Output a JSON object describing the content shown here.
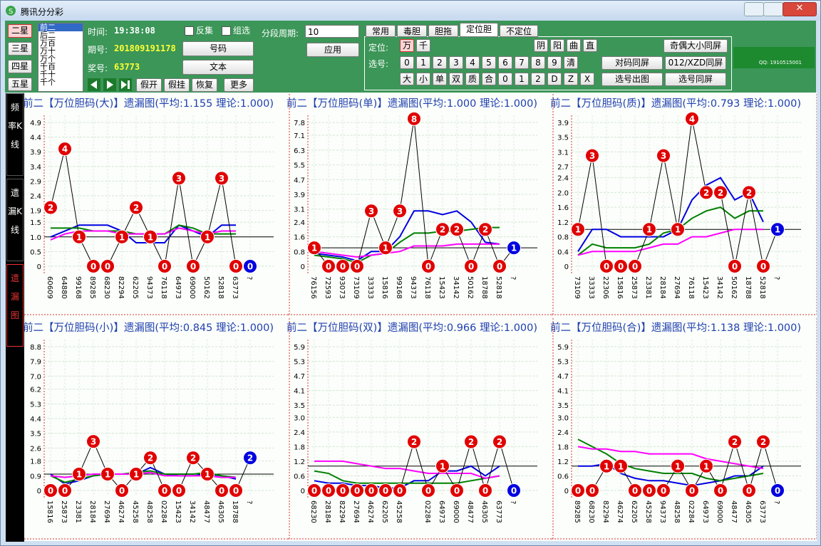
{
  "window": {
    "title": "腾讯分分彩"
  },
  "toolbar": {
    "stars": [
      "二星",
      "三星",
      "四星",
      "五星"
    ],
    "list": [
      "前二",
      "后二",
      "万百",
      "万十",
      "万个",
      "千百",
      "千十",
      "千个"
    ],
    "time_label": "时间:",
    "time": "19:38:08",
    "issue_label": "期号:",
    "issue": "201809191178",
    "prize_label": "奖号:",
    "prize": "63773",
    "checks": [
      "反集",
      "组选"
    ],
    "buttons": [
      "号码",
      "文本"
    ],
    "actions": [
      "假开",
      "假挂",
      "恢复",
      "更多"
    ],
    "period_label": "分段周期:",
    "period": "10",
    "apply": "应用",
    "tabs": [
      "常用",
      "毒胆",
      "胆拖",
      "定位胆",
      "不定位"
    ],
    "pos_label": "定位:",
    "positions": [
      "万",
      "千"
    ],
    "modes": [
      "阴",
      "阳",
      "曲",
      "直"
    ],
    "pick_label": "选号:",
    "digits": [
      "0",
      "1",
      "2",
      "3",
      "4",
      "5",
      "6",
      "7",
      "8",
      "9",
      "清"
    ],
    "attrs": [
      "大",
      "小",
      "单",
      "双",
      "质",
      "合",
      "0",
      "1",
      "2",
      "D",
      "Z",
      "X"
    ],
    "right_buttons": [
      "奇偶大小同屏",
      "对码同屏",
      "012/XZD同屏",
      "选号出图",
      "选号同屏"
    ],
    "logo": "QQ: 1910515001"
  },
  "sidebar": [
    "频率K线",
    "遗漏K线",
    "遗漏图"
  ],
  "chart_data": [
    {
      "type": "line",
      "title": "前二【万位胆码(大)】遗漏图(平均:1.155 理论:1.000)",
      "categories": [
        "60609",
        "64880",
        "99168",
        "89285",
        "68230",
        "82294",
        "62205",
        "94373",
        "76118",
        "64973",
        "69000",
        "50162",
        "52818",
        "63773",
        "?"
      ],
      "values": [
        2,
        4,
        1,
        0,
        0,
        1,
        2,
        1,
        0,
        3,
        0,
        1,
        3,
        0,
        0
      ],
      "series": [
        {
          "color": "#0000e0",
          "values": [
            1.0,
            1.2,
            1.4,
            1.4,
            1.4,
            1.2,
            0.8,
            0.8,
            0.8,
            1.4,
            1.2,
            1.0,
            1.4,
            1.4,
            null
          ]
        },
        {
          "color": "#008000",
          "values": [
            1.3,
            1.3,
            1.3,
            1.2,
            1.2,
            1.2,
            1.1,
            1.1,
            1.1,
            1.4,
            1.3,
            1.1,
            1.1,
            1.1,
            null
          ]
        },
        {
          "color": "#ff00ff",
          "values": [
            0.9,
            1.1,
            1.2,
            1.2,
            1.2,
            1.1,
            1.1,
            1.1,
            1.1,
            1.3,
            1.2,
            1.1,
            1.2,
            1.2,
            null
          ]
        }
      ],
      "reference_line": 1,
      "marker_color": "#e00000",
      "current_color": "#0000e0",
      "ylim": [
        0,
        4.9
      ],
      "yticks": [
        0,
        0.5,
        {
          "value": 1,
          "label": "1.0"
        },
        1.5,
        1.9,
        2.4,
        2.9,
        3.4,
        3.9,
        4.4,
        4.9
      ],
      "grid": true
    },
    {
      "type": "line",
      "title": "前二【万位胆码(单)】遗漏图(平均:1.000 理论:1.000)",
      "categories": [
        "76156",
        "72593",
        "93073",
        "73109",
        "33333",
        "15816",
        "99168",
        "94373",
        "76118",
        "15423",
        "34142",
        "50162",
        "18788",
        "52818",
        "?"
      ],
      "values": [
        1,
        0,
        0,
        0,
        3,
        1,
        3,
        8,
        0,
        2,
        2,
        0,
        2,
        0,
        1
      ],
      "series": [
        {
          "color": "#0000e0",
          "values": [
            0.7,
            0.6,
            0.5,
            0.3,
            0.8,
            0.8,
            1.6,
            3.0,
            3.0,
            2.8,
            3.0,
            2.4,
            1.3,
            1.2,
            null
          ]
        },
        {
          "color": "#008000",
          "values": [
            0.6,
            0.5,
            0.4,
            0.2,
            0.6,
            0.7,
            1.3,
            1.8,
            1.8,
            1.9,
            1.9,
            2.0,
            2.1,
            2.1,
            null
          ]
        },
        {
          "color": "#ff00ff",
          "values": [
            0.8,
            0.7,
            0.6,
            0.5,
            0.6,
            0.7,
            0.8,
            1.1,
            1.1,
            1.1,
            1.2,
            1.2,
            1.2,
            1.2,
            null
          ]
        }
      ],
      "reference_line": 1,
      "marker_color": "#e00000",
      "current_color": "#0000e0",
      "ylim": [
        0,
        7.8
      ],
      "yticks": [
        0,
        0.8,
        1.6,
        2.4,
        3.1,
        3.9,
        4.7,
        5.5,
        6.3,
        7.1,
        7.8
      ],
      "grid": true
    },
    {
      "type": "line",
      "title": "前二【万位胆码(质)】遗漏图(平均:0.793 理论:1.000)",
      "categories": [
        "73109",
        "33333",
        "22306",
        "15816",
        "25873",
        "23381",
        "28184",
        "27694",
        "76118",
        "15423",
        "34142",
        "50162",
        "18788",
        "52818",
        "?"
      ],
      "values": [
        1,
        3,
        0,
        0,
        0,
        1,
        3,
        1,
        4,
        2,
        2,
        0,
        2,
        0,
        1
      ],
      "series": [
        {
          "color": "#0000e0",
          "values": [
            0.4,
            1.0,
            1.0,
            0.8,
            0.8,
            0.8,
            0.8,
            1.0,
            1.8,
            2.2,
            2.4,
            1.8,
            2.0,
            1.2,
            null
          ]
        },
        {
          "color": "#008000",
          "values": [
            0.3,
            0.6,
            0.5,
            0.5,
            0.5,
            0.6,
            0.9,
            1.0,
            1.3,
            1.5,
            1.6,
            1.3,
            1.5,
            1.5,
            null
          ]
        },
        {
          "color": "#ff00ff",
          "values": [
            0.3,
            0.4,
            0.4,
            0.4,
            0.4,
            0.5,
            0.6,
            0.6,
            0.8,
            0.8,
            0.9,
            1.0,
            1.0,
            1.0,
            null
          ]
        }
      ],
      "reference_line": 1,
      "marker_color": "#e00000",
      "current_color": "#0000e0",
      "ylim": [
        0,
        3.9
      ],
      "yticks": [
        0,
        0.4,
        0.8,
        1.2,
        1.6,
        {
          "value": 2,
          "label": "2.0"
        },
        2.4,
        2.7,
        3.1,
        3.5,
        3.9
      ],
      "grid": true
    },
    {
      "type": "line",
      "title": "前二【万位胆码(小)】遗漏图(平均:0.845 理论:1.000)",
      "categories": [
        "15816",
        "25873",
        "23381",
        "28184",
        "27694",
        "46274",
        "45258",
        "48258",
        "02284",
        "15423",
        "34142",
        "48477",
        "46305",
        "18788",
        "?"
      ],
      "values": [
        0,
        0,
        1,
        3,
        1,
        0,
        1,
        2,
        0,
        0,
        2,
        1,
        0,
        0,
        2
      ],
      "series": [
        {
          "color": "#0000e0",
          "values": [
            1.0,
            0.4,
            0.6,
            0.9,
            1.0,
            1.0,
            1.0,
            1.4,
            1.0,
            0.9,
            0.9,
            1.0,
            0.9,
            0.7,
            null
          ]
        },
        {
          "color": "#008000",
          "values": [
            0.9,
            0.5,
            0.7,
            0.9,
            1.0,
            1.0,
            1.1,
            1.2,
            1.0,
            1.0,
            1.0,
            1.1,
            0.9,
            0.8,
            null
          ]
        },
        {
          "color": "#ff00ff",
          "values": [
            0.9,
            0.8,
            0.9,
            1.0,
            1.0,
            1.0,
            1.0,
            1.1,
            0.9,
            0.9,
            0.9,
            0.9,
            0.8,
            0.8,
            null
          ]
        }
      ],
      "reference_line": 1,
      "marker_color": "#e00000",
      "current_color": "#0000e0",
      "ylim": [
        0,
        8.8
      ],
      "yticks": [
        0,
        0.9,
        1.8,
        2.6,
        3.5,
        4.4,
        5.3,
        6.2,
        {
          "value": 7,
          "label": "7.0"
        },
        7.9,
        8.8
      ],
      "grid": true
    },
    {
      "type": "line",
      "title": "前二【万位胆码(双)】遗漏图(平均:0.966 理论:1.000)",
      "categories": [
        "68230",
        "28184",
        "82294",
        "27694",
        "46274",
        "62205",
        "45258",
        null,
        "02284",
        "64973",
        "69000",
        "48477",
        "46305",
        "63773",
        "?"
      ],
      "values": [
        0,
        0,
        0,
        0,
        0,
        0,
        0,
        2,
        0,
        1,
        0,
        2,
        0,
        2,
        0
      ],
      "series": [
        {
          "color": "#0000e0",
          "values": [
            0.4,
            0.3,
            0.3,
            0.2,
            0.2,
            0.1,
            0.1,
            0.4,
            0.4,
            0.8,
            0.8,
            1.0,
            0.6,
            1.0,
            null
          ]
        },
        {
          "color": "#008000",
          "values": [
            0.8,
            0.7,
            0.4,
            0.3,
            0.3,
            0.3,
            0.3,
            0.3,
            0.3,
            0.3,
            0.3,
            0.4,
            0.5,
            0.6,
            null
          ]
        },
        {
          "color": "#ff00ff",
          "values": [
            1.2,
            1.2,
            1.2,
            1.1,
            1.0,
            0.9,
            0.9,
            0.8,
            0.7,
            0.7,
            0.7,
            0.7,
            0.5,
            0.6,
            null
          ]
        }
      ],
      "reference_line": 1,
      "marker_color": "#e00000",
      "current_color": "#0000e0",
      "ylim": [
        0,
        5.9
      ],
      "yticks": [
        0,
        0.6,
        1.2,
        1.8,
        2.4,
        {
          "value": 3,
          "label": "3.0"
        },
        3.5,
        4.1,
        4.7,
        5.3,
        5.9
      ],
      "grid": true
    },
    {
      "type": "line",
      "title": "前二【万位胆码(合)】遗漏图(平均:1.138 理论:1.000)",
      "categories": [
        "89285",
        "68230",
        "82294",
        "46274",
        "62205",
        "45258",
        "94373",
        "48258",
        "02284",
        "64973",
        "69000",
        "48477",
        "46305",
        "63773",
        "?"
      ],
      "values": [
        0,
        0,
        1,
        1,
        0,
        0,
        0,
        1,
        0,
        1,
        0,
        2,
        0,
        2,
        0
      ],
      "series": [
        {
          "color": "#0000e0",
          "values": [
            1.0,
            1.0,
            1.1,
            0.7,
            0.5,
            0.4,
            0.4,
            0.3,
            0.2,
            0.3,
            0.4,
            0.6,
            0.6,
            1.0,
            null
          ]
        },
        {
          "color": "#008000",
          "values": [
            2.1,
            1.8,
            1.5,
            1.1,
            0.9,
            0.8,
            0.7,
            0.7,
            0.7,
            0.5,
            0.4,
            0.5,
            0.6,
            0.7,
            null
          ]
        },
        {
          "color": "#ff00ff",
          "values": [
            1.8,
            1.7,
            1.7,
            1.6,
            1.6,
            1.5,
            1.5,
            1.5,
            1.5,
            1.3,
            1.2,
            1.1,
            1.0,
            0.9,
            null
          ]
        }
      ],
      "reference_line": 1,
      "marker_color": "#e00000",
      "current_color": "#0000e0",
      "ylim": [
        0,
        5.9
      ],
      "yticks": [
        0,
        0.6,
        1.2,
        1.8,
        2.4,
        {
          "value": 3,
          "label": "3.0"
        },
        3.5,
        4.1,
        4.7,
        5.3,
        5.9
      ],
      "grid": true
    }
  ]
}
